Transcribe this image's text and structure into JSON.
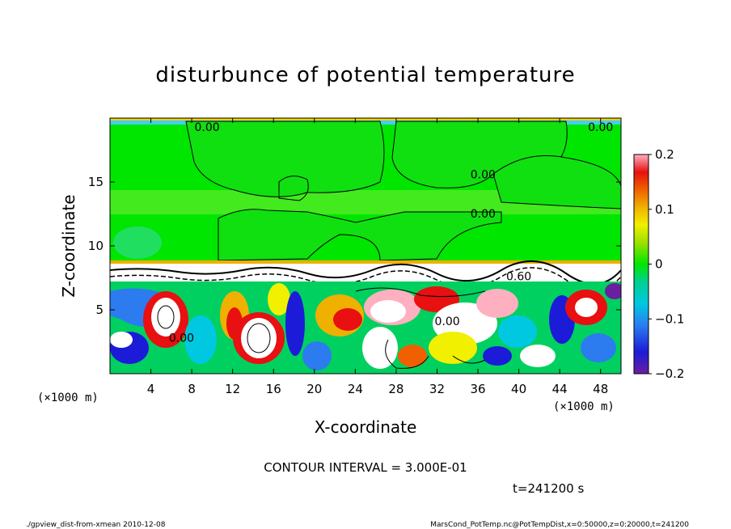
{
  "chart_data": {
    "type": "heatmap",
    "title": "disturbunce of potential temperature",
    "xlabel": "X-coordinate",
    "ylabel": "Z-coordinate",
    "x_unit": "(×1000 m)",
    "y_unit": "(×1000 m)",
    "x_ticks": [
      4,
      8,
      12,
      16,
      20,
      24,
      28,
      32,
      36,
      40,
      44,
      48
    ],
    "y_ticks": [
      5,
      10,
      15
    ],
    "xlim": [
      0,
      50
    ],
    "ylim": [
      0,
      20
    ],
    "colorbar": {
      "range": [
        -0.2,
        0.2
      ],
      "tick_values": [
        0.2,
        0.1,
        0,
        -0.1,
        -0.2
      ],
      "tick_labels": [
        "0.2",
        "0.1",
        "0",
        "−0.1",
        "−0.2"
      ]
    },
    "contour_labels": [
      {
        "text": "0.00",
        "x": 9.5,
        "y": 19.0
      },
      {
        "text": "0.00",
        "x": 48.0,
        "y": 19.0
      },
      {
        "text": "0.00",
        "x": 36.5,
        "y": 15.3
      },
      {
        "text": "0.00",
        "x": 36.5,
        "y": 12.2
      },
      {
        "text": "0.60",
        "x": 40.0,
        "y": 7.3
      },
      {
        "text": "0.00",
        "x": 33.0,
        "y": 3.8
      },
      {
        "text": "0.00",
        "x": 7.0,
        "y": 2.5
      }
    ],
    "contour_interval_text": "CONTOUR INTERVAL = 3.000E-01",
    "time_text": "t=241200 s",
    "colors": {
      "background": "#00e600",
      "stable_band": "#80f080"
    }
  },
  "footer": {
    "left": "./gpview_dist-from-xmean  2010-12-08",
    "right": "MarsCond_PotTemp.nc@PotTempDist,x=0:50000,z=0:20000,t=241200"
  }
}
